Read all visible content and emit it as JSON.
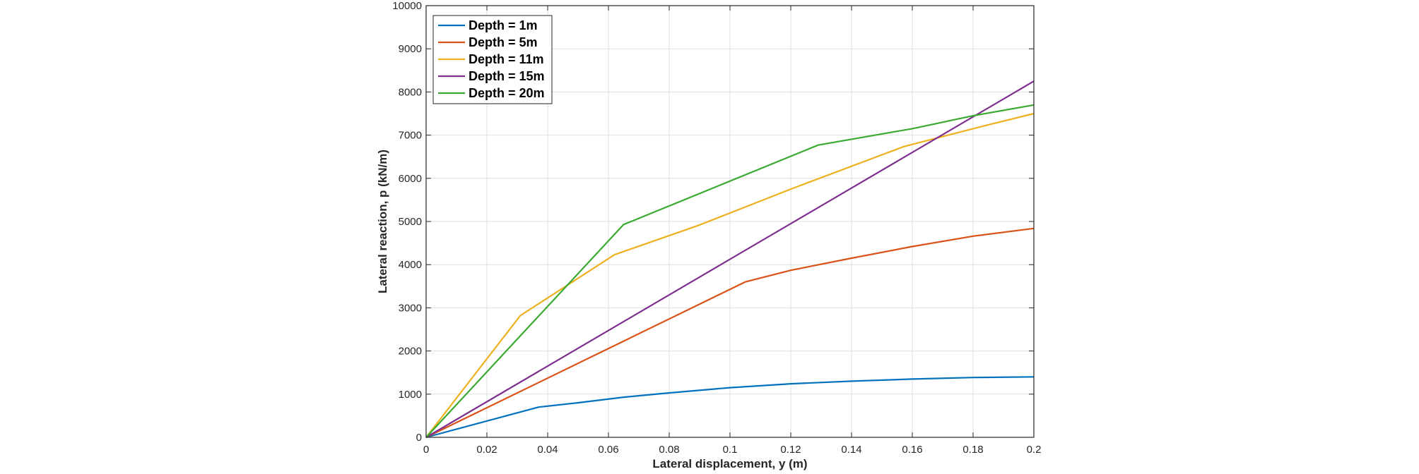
{
  "chart_data": {
    "type": "line",
    "title": "",
    "xlabel": "Lateral displacement, y (m)",
    "ylabel": "Lateral reaction, p (kN/m)",
    "xlim": [
      0,
      0.2
    ],
    "ylim": [
      0,
      10000
    ],
    "x_ticks": [
      0,
      0.02,
      0.04,
      0.06,
      0.08,
      0.1,
      0.12,
      0.14,
      0.16,
      0.18,
      0.2
    ],
    "x_tick_labels": [
      "0",
      "0.02",
      "0.04",
      "0.06",
      "0.08",
      "0.1",
      "0.12",
      "0.14",
      "0.16",
      "0.18",
      "0.2"
    ],
    "y_ticks": [
      0,
      1000,
      2000,
      3000,
      4000,
      5000,
      6000,
      7000,
      8000,
      9000,
      10000
    ],
    "y_tick_labels": [
      "0",
      "1000",
      "2000",
      "3000",
      "4000",
      "5000",
      "6000",
      "7000",
      "8000",
      "9000",
      "10000"
    ],
    "grid": true,
    "legend_position": "top-left",
    "series": [
      {
        "name": "Depth = 1m",
        "color": "#0072BD",
        "points": [
          [
            0,
            0
          ],
          [
            0.037,
            700
          ],
          [
            0.05,
            800
          ],
          [
            0.065,
            930
          ],
          [
            0.08,
            1030
          ],
          [
            0.1,
            1150
          ],
          [
            0.12,
            1240
          ],
          [
            0.14,
            1300
          ],
          [
            0.16,
            1350
          ],
          [
            0.18,
            1385
          ],
          [
            0.2,
            1400
          ]
        ]
      },
      {
        "name": "Depth = 5m",
        "color": "#D95319",
        "points": [
          [
            0,
            0
          ],
          [
            0.105,
            3600
          ],
          [
            0.12,
            3870
          ],
          [
            0.14,
            4150
          ],
          [
            0.16,
            4420
          ],
          [
            0.18,
            4660
          ],
          [
            0.2,
            4840
          ]
        ]
      },
      {
        "name": "Depth = 11m",
        "color": "#EDB120",
        "points": [
          [
            0,
            0
          ],
          [
            0.031,
            2820
          ],
          [
            0.062,
            4230
          ],
          [
            0.09,
            4920
          ],
          [
            0.12,
            5750
          ],
          [
            0.157,
            6730
          ],
          [
            0.18,
            7150
          ],
          [
            0.2,
            7500
          ]
        ]
      },
      {
        "name": "Depth = 15m",
        "color": "#7E2F8E",
        "points": [
          [
            0,
            0
          ],
          [
            0.2,
            8250
          ]
        ]
      },
      {
        "name": "Depth = 20m",
        "color": "#3BAA32",
        "points": [
          [
            0,
            0
          ],
          [
            0.065,
            4930
          ],
          [
            0.129,
            6770
          ],
          [
            0.16,
            7150
          ],
          [
            0.18,
            7450
          ],
          [
            0.2,
            7700
          ]
        ]
      }
    ]
  }
}
